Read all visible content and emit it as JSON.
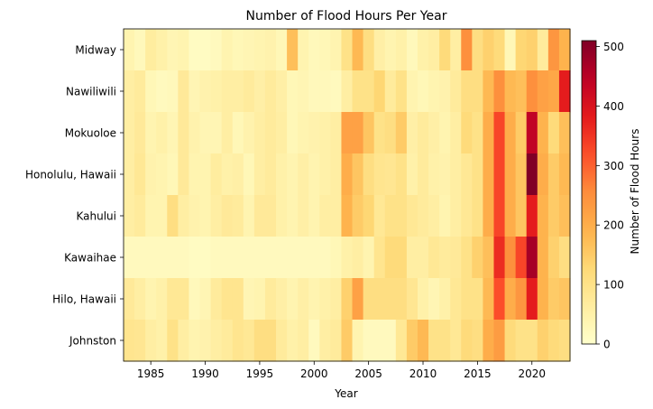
{
  "chart_data": {
    "type": "heatmap",
    "title": "Number of Flood Hours Per Year",
    "xlabel": "Year",
    "ylabel": "",
    "colorbar_label": "Number of Flood Hours",
    "colormap": "YlOrRd",
    "vmin": 0,
    "vmax": 510,
    "colorbar_ticks": [
      0,
      100,
      200,
      300,
      400,
      500
    ],
    "x_years_start": 1983,
    "x_years_end": 2023,
    "x_ticks": [
      1985,
      1990,
      1995,
      2000,
      2005,
      2010,
      2015,
      2020
    ],
    "stations": [
      "Midway",
      "Nawiliwili",
      "Mokuoloe",
      "Honolulu, Hawaii",
      "Kahului",
      "Kawaihae",
      "Hilo, Hawaii",
      "Johnston"
    ],
    "values": [
      [
        40,
        25,
        65,
        50,
        35,
        40,
        15,
        15,
        20,
        40,
        30,
        35,
        40,
        45,
        30,
        170,
        40,
        25,
        30,
        40,
        100,
        180,
        110,
        55,
        40,
        50,
        25,
        50,
        60,
        120,
        60,
        250,
        110,
        140,
        120,
        30,
        130,
        140,
        70,
        240,
        190
      ],
      [
        60,
        70,
        30,
        20,
        25,
        75,
        35,
        45,
        50,
        60,
        60,
        70,
        55,
        70,
        55,
        30,
        35,
        25,
        25,
        20,
        60,
        100,
        100,
        130,
        70,
        100,
        40,
        30,
        40,
        45,
        70,
        110,
        110,
        180,
        250,
        180,
        170,
        250,
        220,
        210,
        380
      ],
      [
        60,
        75,
        40,
        50,
        35,
        75,
        45,
        35,
        35,
        60,
        30,
        45,
        60,
        70,
        60,
        30,
        40,
        45,
        50,
        60,
        220,
        220,
        160,
        100,
        110,
        150,
        55,
        70,
        55,
        40,
        60,
        120,
        100,
        200,
        330,
        200,
        150,
        440,
        190,
        120,
        170
      ],
      [
        60,
        80,
        45,
        40,
        30,
        75,
        40,
        40,
        65,
        50,
        55,
        30,
        60,
        70,
        50,
        40,
        55,
        40,
        50,
        60,
        200,
        160,
        110,
        90,
        85,
        100,
        50,
        70,
        50,
        45,
        60,
        80,
        100,
        200,
        330,
        200,
        160,
        510,
        200,
        150,
        180
      ],
      [
        60,
        70,
        40,
        40,
        110,
        60,
        45,
        40,
        60,
        75,
        70,
        40,
        75,
        75,
        50,
        40,
        55,
        40,
        60,
        60,
        190,
        150,
        130,
        80,
        100,
        100,
        80,
        70,
        60,
        40,
        60,
        80,
        100,
        200,
        330,
        200,
        160,
        380,
        190,
        150,
        170
      ],
      [
        20,
        20,
        20,
        20,
        20,
        20,
        15,
        15,
        20,
        20,
        20,
        20,
        20,
        20,
        20,
        20,
        20,
        20,
        20,
        30,
        50,
        60,
        40,
        90,
        120,
        120,
        60,
        60,
        80,
        70,
        75,
        100,
        140,
        170,
        360,
        250,
        330,
        470,
        190,
        140,
        110
      ],
      [
        75,
        60,
        40,
        50,
        80,
        80,
        25,
        35,
        70,
        90,
        90,
        35,
        40,
        70,
        55,
        40,
        55,
        40,
        50,
        60,
        140,
        220,
        110,
        110,
        110,
        110,
        85,
        50,
        35,
        50,
        80,
        100,
        100,
        180,
        320,
        200,
        240,
        380,
        190,
        150,
        160
      ],
      [
        90,
        85,
        60,
        50,
        100,
        60,
        40,
        45,
        60,
        70,
        90,
        80,
        110,
        110,
        70,
        50,
        60,
        20,
        60,
        70,
        150,
        40,
        20,
        20,
        20,
        80,
        150,
        180,
        100,
        100,
        80,
        120,
        110,
        200,
        230,
        120,
        100,
        100,
        140,
        120,
        110
      ]
    ]
  }
}
